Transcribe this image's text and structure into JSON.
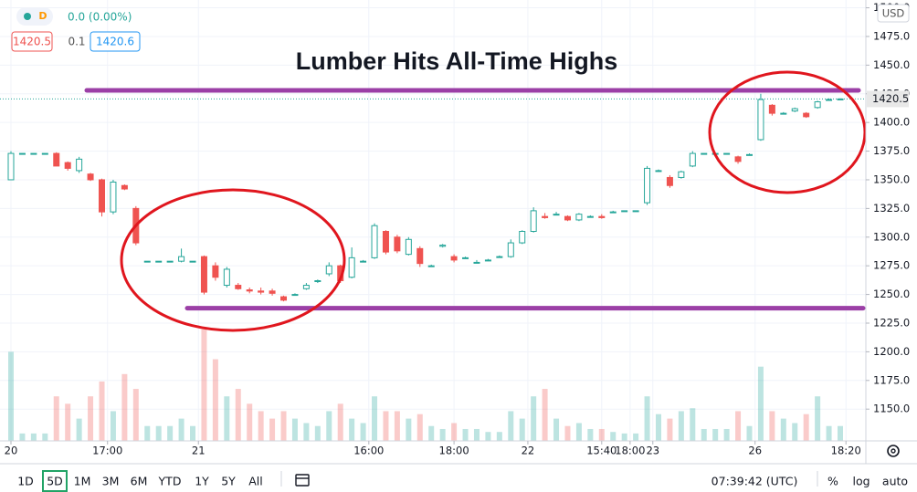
{
  "chart_data": {
    "type": "candlestick",
    "title": "Lumber Hits All-Time Highs",
    "interval": "D",
    "change": "0.0 (0.00%)",
    "bid": "1420.5",
    "spread": "0.1",
    "ask": "1420.6",
    "currency": "USD",
    "last_price": 1420.5,
    "up_color": "#26a69a",
    "down_color": "#ef5350",
    "level_color": "#9b3fa6",
    "levels": [
      1428,
      1238
    ],
    "ylim": [
      1122.3,
      1506.8
    ],
    "yticks": [
      {
        "value": 1150,
        "label": "1150.0"
      },
      {
        "value": 1175,
        "label": "1175.0"
      },
      {
        "value": 1200,
        "label": "1200.0"
      },
      {
        "value": 1225,
        "label": "1225.0"
      },
      {
        "value": 1250,
        "label": "1250.0"
      },
      {
        "value": 1275,
        "label": "1275.0"
      },
      {
        "value": 1300,
        "label": "1300.0"
      },
      {
        "value": 1325,
        "label": "1325.0"
      },
      {
        "value": 1350,
        "label": "1350.0"
      },
      {
        "value": 1375,
        "label": "1375.0"
      },
      {
        "value": 1400,
        "label": "1400.0"
      },
      {
        "value": 1425,
        "label": "1425.0"
      },
      {
        "value": 1450,
        "label": "1450.0"
      },
      {
        "value": 1475,
        "label": "1475.0"
      },
      {
        "value": 1500,
        "label": "1500.0"
      }
    ],
    "xticks": [
      {
        "value": 0,
        "label": "20"
      },
      {
        "value": 8.5,
        "label": "17:00"
      },
      {
        "value": 16.5,
        "label": "21"
      },
      {
        "value": 31.5,
        "label": "16:00"
      },
      {
        "value": 39,
        "label": "18:00"
      },
      {
        "value": 45.5,
        "label": "22"
      },
      {
        "value": 52,
        "label": "15:40"
      },
      {
        "value": 54.5,
        "label": "18:00"
      },
      {
        "value": 56.5,
        "label": "23"
      },
      {
        "value": 65.5,
        "label": "26"
      },
      {
        "value": 73.5,
        "label": "18:20"
      }
    ],
    "open": [
      1350,
      1373,
      1373,
      1373,
      1373,
      1365,
      1358,
      1355,
      1350,
      1322,
      1345,
      1325,
      1279,
      1279,
      1279,
      1279,
      1279,
      1283,
      1275,
      1258,
      1258,
      1254,
      1253,
      1253,
      1248,
      1250,
      1255,
      1262,
      1268,
      1275,
      1265,
      1279,
      1282,
      1305,
      1300,
      1285,
      1290,
      1275,
      1292,
      1283,
      1282,
      1278,
      1280,
      1283,
      1283,
      1295,
      1305,
      1318,
      1320,
      1318,
      1315,
      1318,
      1318,
      1322,
      1323,
      1323,
      1330,
      1358,
      1352,
      1352,
      1362,
      1373,
      1373,
      1373,
      1370,
      1372,
      1385,
      1415,
      1408,
      1410,
      1408,
      1413,
      1420,
      1420.5
    ],
    "high": [
      1375,
      1373,
      1373,
      1373,
      1374,
      1366,
      1370,
      1356,
      1351,
      1350,
      1346,
      1327,
      1279,
      1279,
      1279,
      1290,
      1279,
      1284,
      1278,
      1274,
      1260,
      1256,
      1256,
      1255,
      1249,
      1251,
      1260,
      1263,
      1278,
      1276,
      1291,
      1280,
      1312,
      1306,
      1302,
      1300,
      1292,
      1276,
      1294,
      1285,
      1283,
      1280,
      1281,
      1284,
      1298,
      1306,
      1326,
      1321,
      1322,
      1319,
      1321,
      1319,
      1320,
      1323,
      1323,
      1323,
      1362,
      1359,
      1354,
      1358,
      1375,
      1373,
      1373,
      1373,
      1371,
      1373,
      1425,
      1416,
      1409,
      1413,
      1409,
      1419,
      1421,
      1421
    ],
    "low": [
      1350,
      1373,
      1373,
      1373,
      1362,
      1358,
      1356,
      1349,
      1318,
      1320,
      1341,
      1293,
      1279,
      1279,
      1279,
      1278,
      1279,
      1250,
      1262,
      1256,
      1254,
      1251,
      1250,
      1249,
      1244,
      1249,
      1254,
      1260,
      1266,
      1260,
      1264,
      1278,
      1281,
      1285,
      1286,
      1284,
      1274,
      1274,
      1291,
      1278,
      1281,
      1277,
      1279,
      1282,
      1282,
      1294,
      1304,
      1316,
      1319,
      1314,
      1314,
      1317,
      1316,
      1321,
      1323,
      1323,
      1328,
      1357,
      1343,
      1351,
      1361,
      1373,
      1373,
      1373,
      1364,
      1371,
      1384,
      1406,
      1407,
      1409,
      1404,
      1412,
      1419,
      1420
    ],
    "close": [
      1373,
      1373,
      1373,
      1373,
      1362,
      1360,
      1368,
      1350,
      1322,
      1348,
      1342,
      1295,
      1279,
      1279,
      1279,
      1283,
      1279,
      1252,
      1265,
      1272,
      1255,
      1253,
      1252,
      1251,
      1245,
      1250,
      1258,
      1262,
      1275,
      1262,
      1282,
      1279,
      1310,
      1287,
      1288,
      1298,
      1277,
      1275,
      1293,
      1280,
      1282,
      1278,
      1280,
      1283,
      1295,
      1305,
      1323,
      1317,
      1320,
      1315,
      1320,
      1318,
      1317,
      1322,
      1323,
      1323,
      1360,
      1358,
      1345,
      1357,
      1373,
      1373,
      1373,
      1373,
      1366,
      1372,
      1420,
      1408,
      1408,
      1412,
      1405,
      1418,
      1420,
      1420.5
    ],
    "volume": [
      60,
      5,
      5,
      5,
      30,
      25,
      15,
      30,
      40,
      20,
      45,
      35,
      10,
      10,
      10,
      15,
      10,
      75,
      55,
      30,
      35,
      25,
      20,
      15,
      20,
      15,
      12,
      10,
      20,
      25,
      15,
      12,
      30,
      20,
      20,
      15,
      18,
      10,
      8,
      12,
      8,
      8,
      6,
      6,
      20,
      15,
      30,
      35,
      15,
      10,
      12,
      8,
      8,
      6,
      5,
      5,
      30,
      18,
      15,
      20,
      22,
      8,
      8,
      8,
      20,
      10,
      50,
      20,
      15,
      12,
      18,
      30,
      10,
      10
    ]
  },
  "toolbar": {
    "ranges": [
      "1D",
      "5D",
      "1M",
      "3M",
      "6M",
      "YTD",
      "1Y",
      "5Y",
      "All"
    ],
    "clock": "07:39:42 (UTC)",
    "options": [
      "%",
      "log",
      "auto"
    ]
  }
}
